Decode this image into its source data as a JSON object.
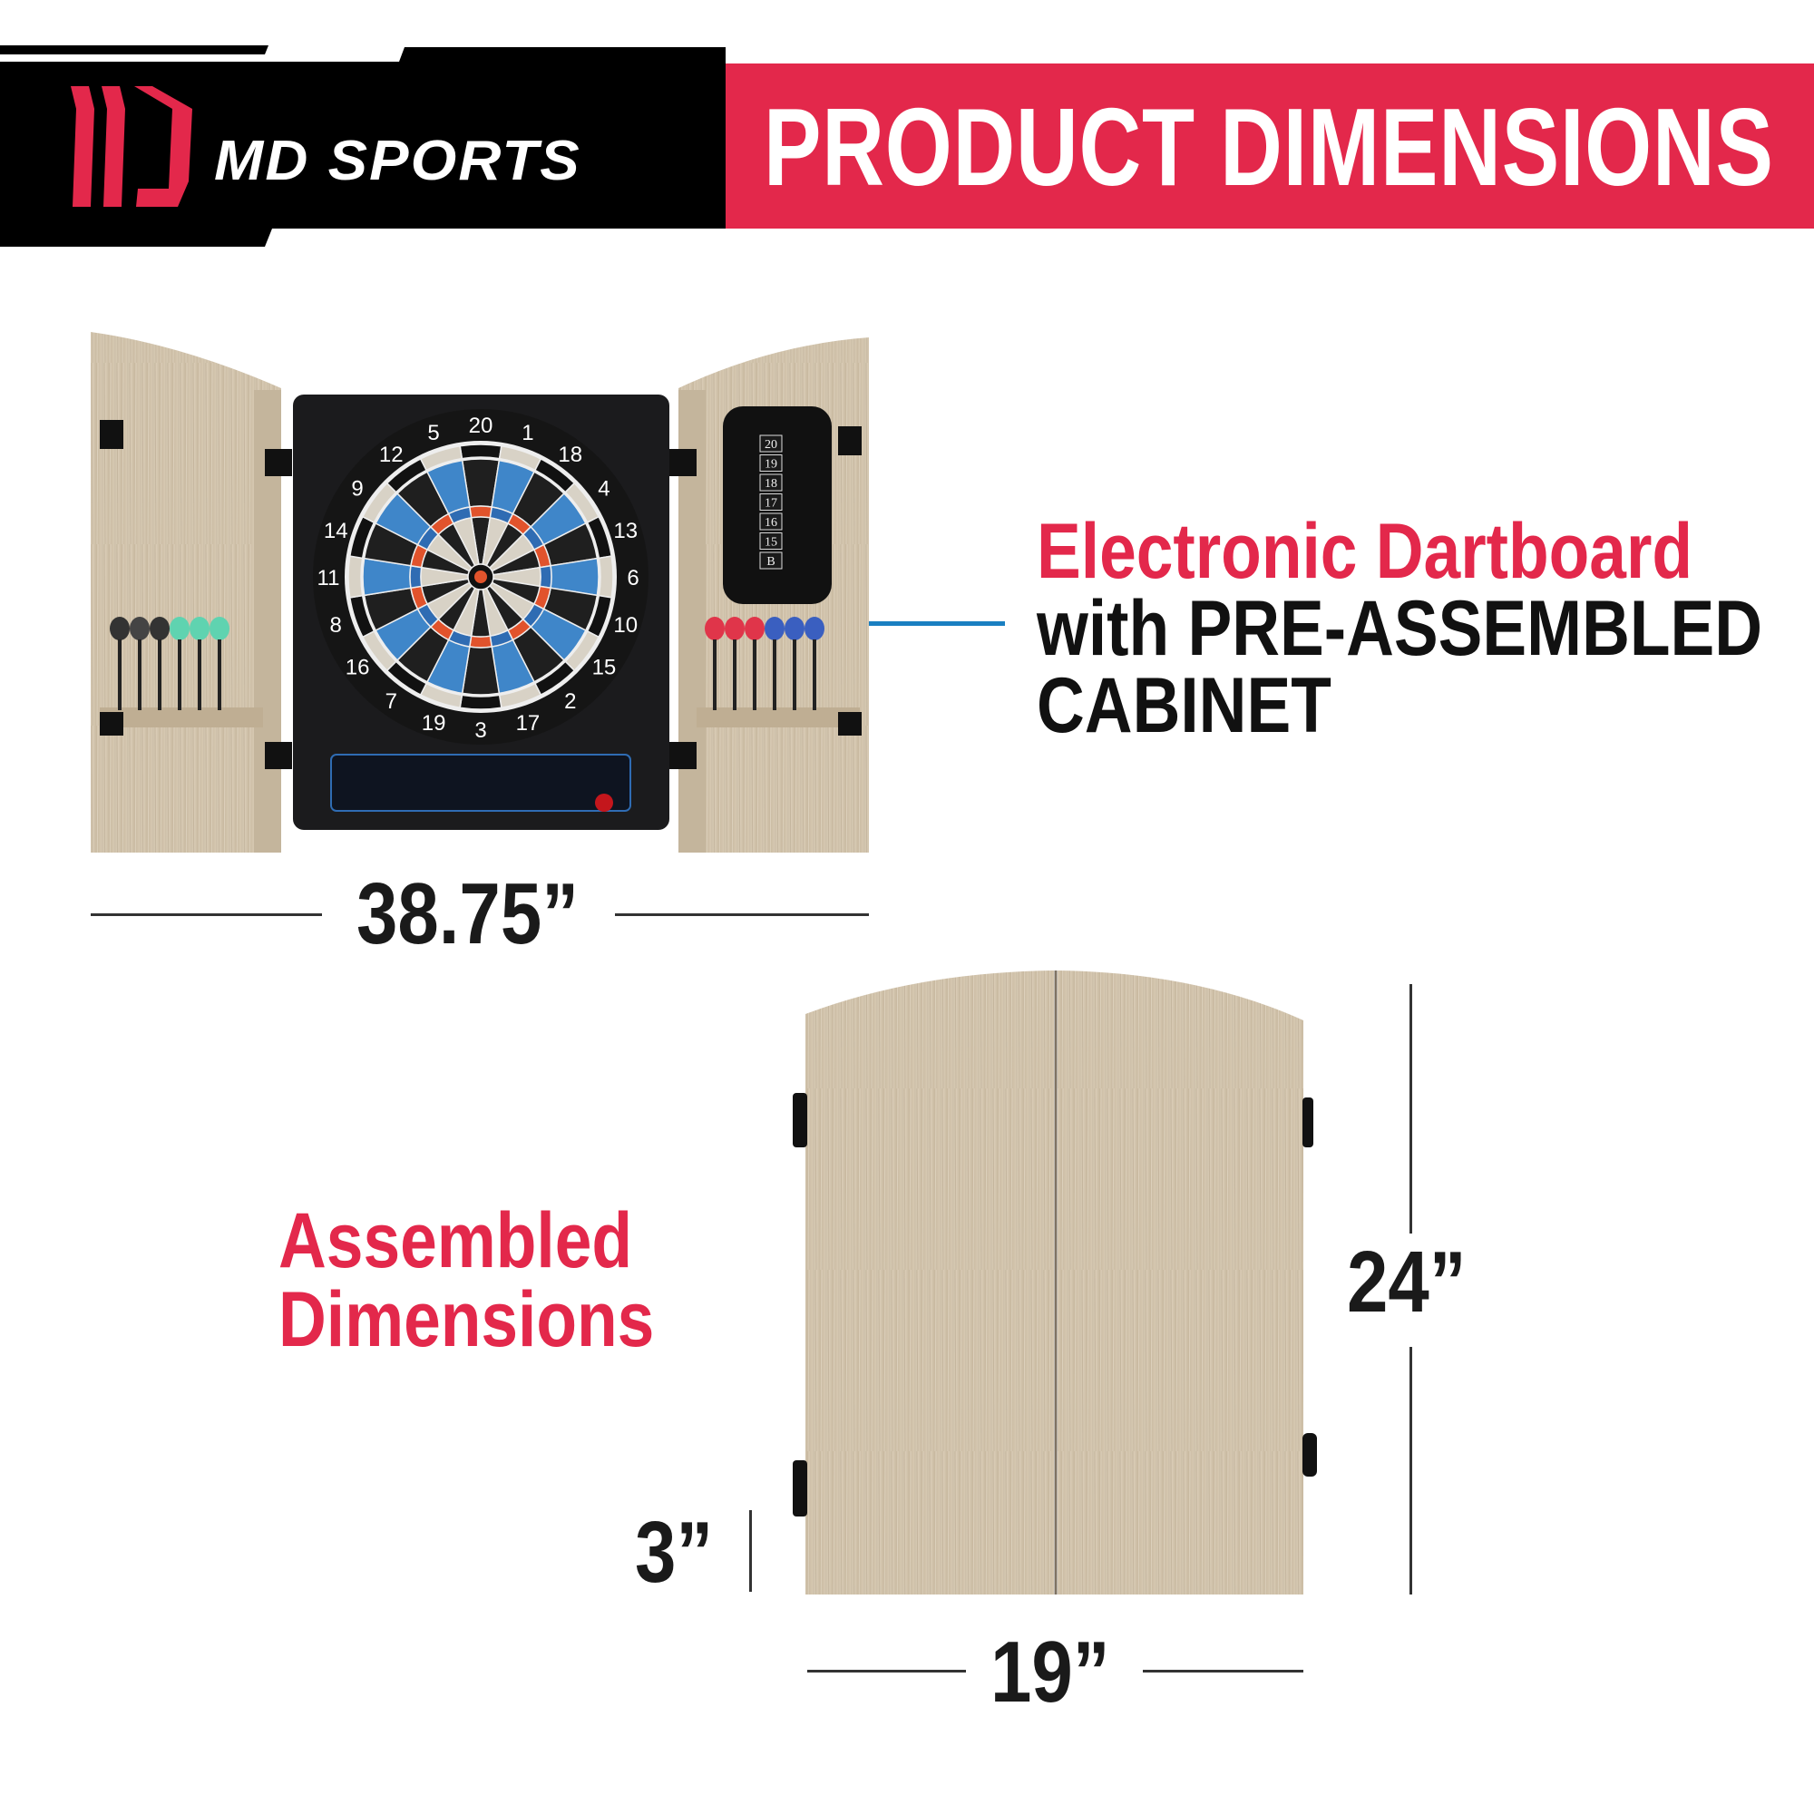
{
  "header": {
    "brand": "MD SPORTS",
    "brand_mark": "ML",
    "title": "PRODUCT DIMENSIONS",
    "colors": {
      "accent_red": "#e3284b",
      "black": "#000000"
    }
  },
  "feature": {
    "line1": "Electronic Dartboard",
    "line2": "with PRE-ASSEMBLED",
    "line3": "CABINET",
    "connector_color": "#1a7fc1"
  },
  "dartboard": {
    "numbers": [
      "20",
      "1",
      "18",
      "4",
      "13",
      "6",
      "10",
      "15",
      "2",
      "17",
      "3",
      "19",
      "7",
      "16",
      "8",
      "11",
      "14",
      "9",
      "12",
      "5"
    ],
    "scoreboard": [
      "20",
      "19",
      "18",
      "17",
      "16",
      "15",
      "B"
    ]
  },
  "dimensions": {
    "open_width": "38.75”",
    "assembled_label_1": "Assembled",
    "assembled_label_2": "Dimensions",
    "height": "24”",
    "depth": "3”",
    "width": "19”"
  }
}
